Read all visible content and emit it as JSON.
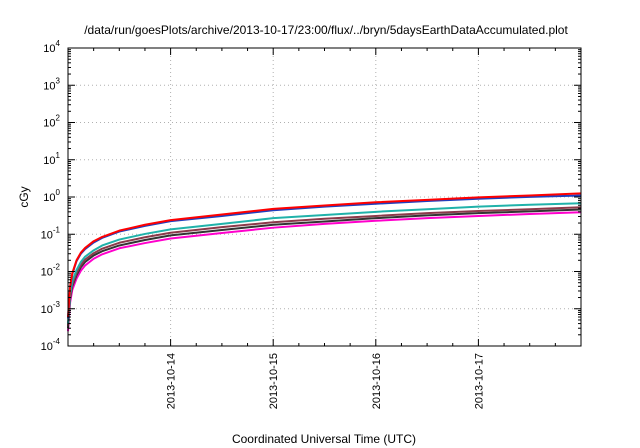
{
  "chart_data": {
    "type": "line",
    "title": "/data/run/goesPlots/archive/2013-10-17/23:00/flux/../bryn/5daysEarthDataAccumulated.plot",
    "xlabel": "Coordinated Universal Time (UTC)",
    "ylabel": "cGy",
    "yscale": "log",
    "ylim": [
      0.0001,
      10000
    ],
    "xlim": [
      "2013-10-13 00:00",
      "2013-10-18 00:00"
    ],
    "grid": true,
    "legend": "none",
    "y_ticks": [
      {
        "base": "10",
        "exp": "-4"
      },
      {
        "base": "10",
        "exp": "-3"
      },
      {
        "base": "10",
        "exp": "-2"
      },
      {
        "base": "10",
        "exp": "-1"
      },
      {
        "base": "10",
        "exp": "0"
      },
      {
        "base": "10",
        "exp": "1"
      },
      {
        "base": "10",
        "exp": "2"
      },
      {
        "base": "10",
        "exp": "3"
      },
      {
        "base": "10",
        "exp": "4"
      }
    ],
    "x_ticks": [
      "2013-10-14",
      "2013-10-15",
      "2013-10-16",
      "2013-10-17"
    ],
    "x": [
      "2013-10-13 00:00",
      "2013-10-13 00:30",
      "2013-10-13 01:00",
      "2013-10-13 02:00",
      "2013-10-13 03:00",
      "2013-10-13 04:00",
      "2013-10-13 06:00",
      "2013-10-13 08:00",
      "2013-10-13 12:00",
      "2013-10-13 18:00",
      "2013-10-14 00:00",
      "2013-10-14 12:00",
      "2013-10-15 00:00",
      "2013-10-15 12:00",
      "2013-10-16 00:00",
      "2013-10-16 12:00",
      "2013-10-17 00:00",
      "2013-10-17 12:00",
      "2013-10-18 00:00"
    ],
    "series": [
      {
        "color": "#ff0000",
        "values": [
          0.0006,
          0.004,
          0.009,
          0.02,
          0.032,
          0.043,
          0.065,
          0.085,
          0.125,
          0.18,
          0.24,
          0.34,
          0.48,
          0.59,
          0.72,
          0.84,
          0.98,
          1.1,
          1.25
        ]
      },
      {
        "color": "#1f3fbf",
        "values": [
          0.00055,
          0.0037,
          0.0085,
          0.019,
          0.03,
          0.04,
          0.06,
          0.08,
          0.118,
          0.168,
          0.225,
          0.31,
          0.44,
          0.55,
          0.66,
          0.78,
          0.9,
          1.01,
          1.1
        ]
      },
      {
        "color": "#20b2aa",
        "values": [
          0.0004,
          0.0025,
          0.0055,
          0.011,
          0.018,
          0.025,
          0.037,
          0.05,
          0.072,
          0.102,
          0.135,
          0.19,
          0.27,
          0.33,
          0.4,
          0.47,
          0.55,
          0.62,
          0.68
        ]
      },
      {
        "color": "#8b3a4a",
        "values": [
          0.00035,
          0.0021,
          0.0045,
          0.009,
          0.015,
          0.021,
          0.031,
          0.041,
          0.059,
          0.083,
          0.11,
          0.155,
          0.21,
          0.26,
          0.31,
          0.37,
          0.42,
          0.47,
          0.53
        ]
      },
      {
        "color": "#333333",
        "values": [
          0.0003,
          0.0019,
          0.004,
          0.008,
          0.013,
          0.018,
          0.027,
          0.035,
          0.05,
          0.07,
          0.093,
          0.13,
          0.18,
          0.22,
          0.27,
          0.32,
          0.37,
          0.41,
          0.46
        ]
      },
      {
        "color": "#ff00cc",
        "values": [
          0.00025,
          0.0015,
          0.0032,
          0.0065,
          0.0105,
          0.0145,
          0.022,
          0.029,
          0.042,
          0.058,
          0.077,
          0.108,
          0.15,
          0.19,
          0.23,
          0.27,
          0.31,
          0.35,
          0.39
        ]
      }
    ]
  }
}
